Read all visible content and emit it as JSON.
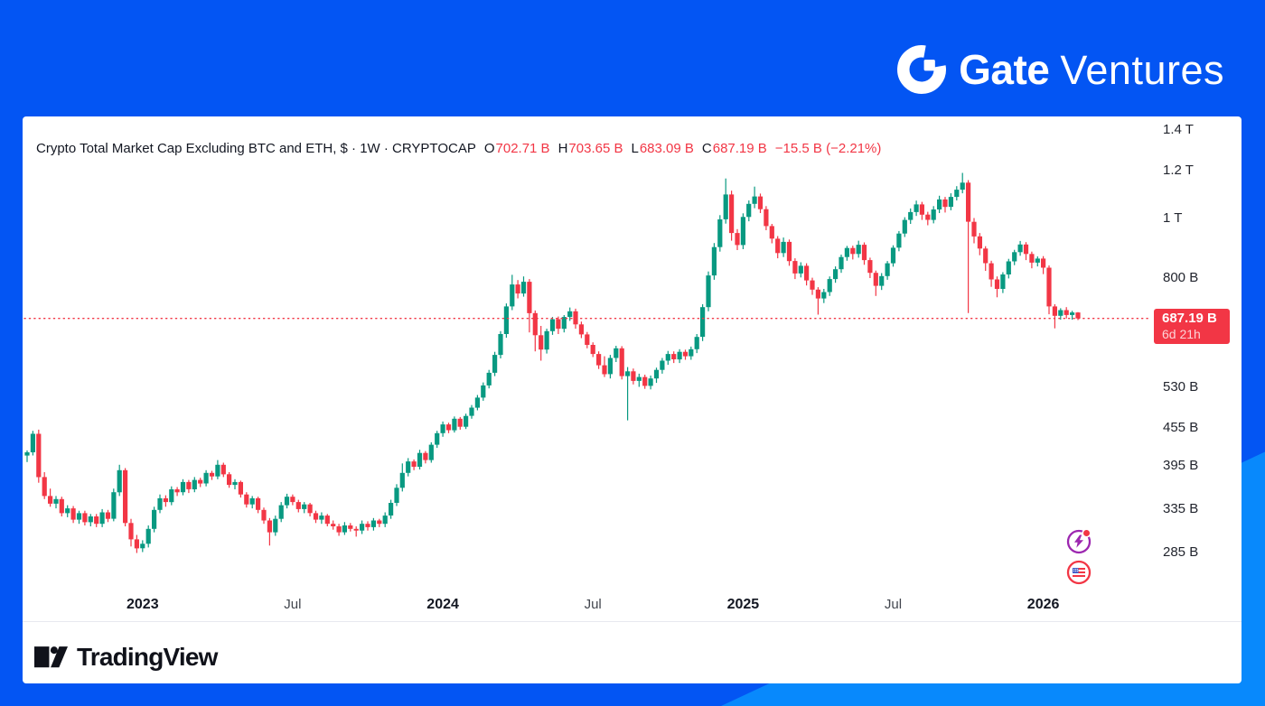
{
  "brand": {
    "name_bold": "Gate",
    "name_light": "Ventures"
  },
  "chart": {
    "title": "Crypto Total Market Cap Excluding BTC and ETH, $ · 1W · CRYPTOCAP",
    "ohlc": {
      "open_label": "O",
      "open": "702.71 B",
      "high_label": "H",
      "high": "703.65 B",
      "low_label": "L",
      "low": "683.09 B",
      "close_label": "C",
      "close": "687.19 B",
      "change": "−15.5 B (−2.21%)"
    },
    "price_tag": {
      "value": "687.19 B",
      "countdown": "6d 21h"
    }
  },
  "chart_data": {
    "type": "candlestick",
    "symbol": "CRYPTOCAP",
    "series_name": "Crypto Total Market Cap Excluding BTC and ETH",
    "currency": "$",
    "timeframe": "1W",
    "y_scale": "log",
    "grid": "off",
    "last_price": 687.19,
    "last_change_billions": -15.5,
    "last_change_percent": -2.21,
    "y_axis_ticks": [
      {
        "label": "1.4 T",
        "value": 1400
      },
      {
        "label": "1.2 T",
        "value": 1200
      },
      {
        "label": "1 T",
        "value": 1000
      },
      {
        "label": "800 B",
        "value": 800
      },
      {
        "label": "530 B",
        "value": 530
      },
      {
        "label": "455 B",
        "value": 455
      },
      {
        "label": "395 B",
        "value": 395
      },
      {
        "label": "335 B",
        "value": 335
      },
      {
        "label": "285 B",
        "value": 285
      }
    ],
    "x_axis_ticks": [
      {
        "label": "2023",
        "week_index": 20,
        "bold": true
      },
      {
        "label": "Jul",
        "week_index": 46,
        "bold": false
      },
      {
        "label": "2024",
        "week_index": 72,
        "bold": true
      },
      {
        "label": "Jul",
        "week_index": 98,
        "bold": false
      },
      {
        "label": "2025",
        "week_index": 124,
        "bold": true
      },
      {
        "label": "Jul",
        "week_index": 150,
        "bold": false
      },
      {
        "label": "2026",
        "week_index": 176,
        "bold": true
      }
    ],
    "candles_ohlc_billions": [
      [
        410,
        418,
        400,
        415
      ],
      [
        415,
        450,
        410,
        445
      ],
      [
        445,
        452,
        370,
        378
      ],
      [
        378,
        385,
        348,
        352
      ],
      [
        352,
        362,
        338,
        342
      ],
      [
        342,
        352,
        336,
        348
      ],
      [
        348,
        351,
        326,
        330
      ],
      [
        330,
        340,
        325,
        336
      ],
      [
        336,
        339,
        318,
        322
      ],
      [
        322,
        333,
        317,
        330
      ],
      [
        330,
        333,
        315,
        319
      ],
      [
        319,
        329,
        314,
        326
      ],
      [
        326,
        329,
        313,
        317
      ],
      [
        317,
        335,
        313,
        331
      ],
      [
        331,
        334,
        319,
        323
      ],
      [
        323,
        362,
        320,
        357
      ],
      [
        357,
        396,
        352,
        388
      ],
      [
        388,
        391,
        314,
        318
      ],
      [
        318,
        323,
        291,
        299
      ],
      [
        299,
        304,
        284,
        289
      ],
      [
        289,
        298,
        285,
        294
      ],
      [
        294,
        315,
        290,
        311
      ],
      [
        311,
        338,
        307,
        334
      ],
      [
        334,
        354,
        330,
        349
      ],
      [
        349,
        353,
        338,
        344
      ],
      [
        344,
        365,
        340,
        361
      ],
      [
        361,
        364,
        352,
        357
      ],
      [
        357,
        375,
        353,
        371
      ],
      [
        371,
        374,
        356,
        361
      ],
      [
        361,
        378,
        357,
        374
      ],
      [
        374,
        377,
        364,
        369
      ],
      [
        369,
        388,
        365,
        384
      ],
      [
        384,
        387,
        374,
        379
      ],
      [
        379,
        403,
        375,
        396
      ],
      [
        396,
        399,
        378,
        382
      ],
      [
        382,
        385,
        363,
        367
      ],
      [
        367,
        375,
        361,
        371
      ],
      [
        371,
        373,
        350,
        354
      ],
      [
        354,
        357,
        337,
        341
      ],
      [
        341,
        352,
        336,
        349
      ],
      [
        349,
        351,
        330,
        334
      ],
      [
        334,
        337,
        317,
        321
      ],
      [
        321,
        324,
        292,
        307
      ],
      [
        307,
        327,
        303,
        323
      ],
      [
        323,
        344,
        319,
        340
      ],
      [
        340,
        355,
        336,
        351
      ],
      [
        351,
        354,
        340,
        344
      ],
      [
        344,
        347,
        331,
        335
      ],
      [
        335,
        344,
        330,
        341
      ],
      [
        341,
        343,
        326,
        330
      ],
      [
        330,
        333,
        318,
        322
      ],
      [
        322,
        331,
        317,
        327
      ],
      [
        327,
        329,
        314,
        317
      ],
      [
        317,
        321,
        310,
        314
      ],
      [
        314,
        317,
        303,
        307
      ],
      [
        307,
        319,
        304,
        315
      ],
      [
        315,
        318,
        308,
        311
      ],
      [
        311,
        314,
        302,
        309
      ],
      [
        309,
        321,
        305,
        317
      ],
      [
        317,
        320,
        309,
        313
      ],
      [
        313,
        324,
        309,
        321
      ],
      [
        321,
        323,
        313,
        317
      ],
      [
        317,
        331,
        313,
        327
      ],
      [
        327,
        347,
        323,
        343
      ],
      [
        343,
        368,
        339,
        363
      ],
      [
        363,
        398,
        358,
        384
      ],
      [
        384,
        406,
        379,
        401
      ],
      [
        401,
        404,
        388,
        393
      ],
      [
        393,
        419,
        389,
        414
      ],
      [
        414,
        417,
        398,
        403
      ],
      [
        403,
        431,
        399,
        427
      ],
      [
        427,
        450,
        422,
        446
      ],
      [
        446,
        466,
        440,
        461
      ],
      [
        461,
        464,
        446,
        451
      ],
      [
        451,
        475,
        447,
        471
      ],
      [
        471,
        474,
        452,
        457
      ],
      [
        457,
        480,
        453,
        476
      ],
      [
        476,
        496,
        471,
        491
      ],
      [
        491,
        515,
        486,
        510
      ],
      [
        510,
        540,
        504,
        534
      ],
      [
        534,
        566,
        528,
        560
      ],
      [
        560,
        606,
        553,
        599
      ],
      [
        599,
        655,
        591,
        648
      ],
      [
        648,
        727,
        639,
        719
      ],
      [
        719,
        810,
        709,
        781
      ],
      [
        781,
        794,
        741,
        755
      ],
      [
        755,
        805,
        746,
        789
      ],
      [
        789,
        797,
        652,
        701
      ],
      [
        701,
        708,
        607,
        645
      ],
      [
        645,
        668,
        586,
        611
      ],
      [
        611,
        661,
        602,
        655
      ],
      [
        655,
        691,
        646,
        685
      ],
      [
        685,
        692,
        648,
        661
      ],
      [
        661,
        696,
        652,
        691
      ],
      [
        691,
        716,
        681,
        706
      ],
      [
        706,
        713,
        661,
        672
      ],
      [
        672,
        679,
        638,
        647
      ],
      [
        647,
        653,
        614,
        622
      ],
      [
        622,
        628,
        594,
        601
      ],
      [
        601,
        607,
        568,
        576
      ],
      [
        576,
        596,
        551,
        557
      ],
      [
        557,
        599,
        548,
        592
      ],
      [
        592,
        620,
        583,
        614
      ],
      [
        614,
        619,
        546,
        553
      ],
      [
        553,
        572,
        468,
        563
      ],
      [
        563,
        569,
        536,
        543
      ],
      [
        543,
        558,
        531,
        551
      ],
      [
        551,
        556,
        527,
        533
      ],
      [
        533,
        554,
        526,
        548
      ],
      [
        548,
        571,
        539,
        566
      ],
      [
        566,
        592,
        558,
        586
      ],
      [
        586,
        608,
        577,
        601
      ],
      [
        601,
        607,
        581,
        589
      ],
      [
        589,
        612,
        581,
        606
      ],
      [
        606,
        611,
        588,
        596
      ],
      [
        596,
        618,
        588,
        612
      ],
      [
        612,
        648,
        603,
        641
      ],
      [
        641,
        725,
        631,
        717
      ],
      [
        717,
        820,
        706,
        808
      ],
      [
        808,
        913,
        795,
        899
      ],
      [
        899,
        1014,
        884,
        998
      ],
      [
        998,
        1164,
        982,
        1096
      ],
      [
        1096,
        1112,
        921,
        948
      ],
      [
        948,
        962,
        889,
        906
      ],
      [
        906,
        1021,
        892,
        1007
      ],
      [
        1007,
        1072,
        991,
        1058
      ],
      [
        1058,
        1129,
        1041,
        1088
      ],
      [
        1088,
        1100,
        1022,
        1037
      ],
      [
        1037,
        1049,
        958,
        973
      ],
      [
        973,
        981,
        912,
        928
      ],
      [
        928,
        937,
        862,
        879
      ],
      [
        879,
        932,
        866,
        917
      ],
      [
        917,
        925,
        838,
        853
      ],
      [
        853,
        862,
        797,
        814
      ],
      [
        814,
        849,
        802,
        838
      ],
      [
        838,
        846,
        778,
        793
      ],
      [
        793,
        801,
        751,
        766
      ],
      [
        766,
        773,
        697,
        741
      ],
      [
        741,
        768,
        728,
        759
      ],
      [
        759,
        805,
        748,
        797
      ],
      [
        797,
        836,
        786,
        827
      ],
      [
        827,
        874,
        816,
        866
      ],
      [
        866,
        903,
        854,
        896
      ],
      [
        896,
        904,
        858,
        876
      ],
      [
        876,
        921,
        864,
        907
      ],
      [
        907,
        915,
        841,
        856
      ],
      [
        856,
        864,
        800,
        816
      ],
      [
        816,
        823,
        748,
        777
      ],
      [
        777,
        815,
        765,
        806
      ],
      [
        806,
        853,
        795,
        846
      ],
      [
        846,
        905,
        835,
        897
      ],
      [
        897,
        955,
        885,
        946
      ],
      [
        946,
        1006,
        934,
        996
      ],
      [
        996,
        1040,
        981,
        1026
      ],
      [
        1026,
        1071,
        1011,
        1056
      ],
      [
        1056,
        1066,
        996,
        1016
      ],
      [
        1016,
        1027,
        976,
        996
      ],
      [
        996,
        1049,
        983,
        1036
      ],
      [
        1036,
        1091,
        1022,
        1076
      ],
      [
        1076,
        1086,
        1024,
        1046
      ],
      [
        1046,
        1101,
        1033,
        1086
      ],
      [
        1086,
        1131,
        1072,
        1116
      ],
      [
        1116,
        1189,
        1101,
        1146
      ],
      [
        1146,
        1157,
        701,
        989
      ],
      [
        989,
        1003,
        912,
        936
      ],
      [
        936,
        948,
        872,
        894
      ],
      [
        894,
        902,
        822,
        846
      ],
      [
        846,
        854,
        774,
        796
      ],
      [
        796,
        805,
        744,
        768
      ],
      [
        768,
        818,
        756,
        811
      ],
      [
        811,
        860,
        799,
        852
      ],
      [
        852,
        890,
        840,
        882
      ],
      [
        882,
        920,
        870,
        908
      ],
      [
        908,
        916,
        856,
        876
      ],
      [
        876,
        884,
        830,
        848
      ],
      [
        848,
        868,
        836,
        861
      ],
      [
        861,
        869,
        812,
        832
      ],
      [
        832,
        839,
        698,
        719
      ],
      [
        719,
        725,
        662,
        694
      ],
      [
        694,
        714,
        684,
        709
      ],
      [
        709,
        717,
        687,
        696
      ],
      [
        696,
        707,
        684,
        702.71
      ],
      [
        702.71,
        703.65,
        683.09,
        687.19
      ]
    ]
  },
  "icons": {
    "chart_events": "lightning-icon",
    "economic_events": "us-flag-icon"
  },
  "footer": {
    "logo_text": "TradingView"
  },
  "colors": {
    "up": "#089981",
    "down": "#F23645",
    "background_blue": "#0355F3",
    "background_blue_light": "#0889FC",
    "panel": "#FFFFFF",
    "text_dark": "#131722",
    "lightning_purple": "#9C27B0",
    "flag_blue": "#3D5AC8"
  }
}
